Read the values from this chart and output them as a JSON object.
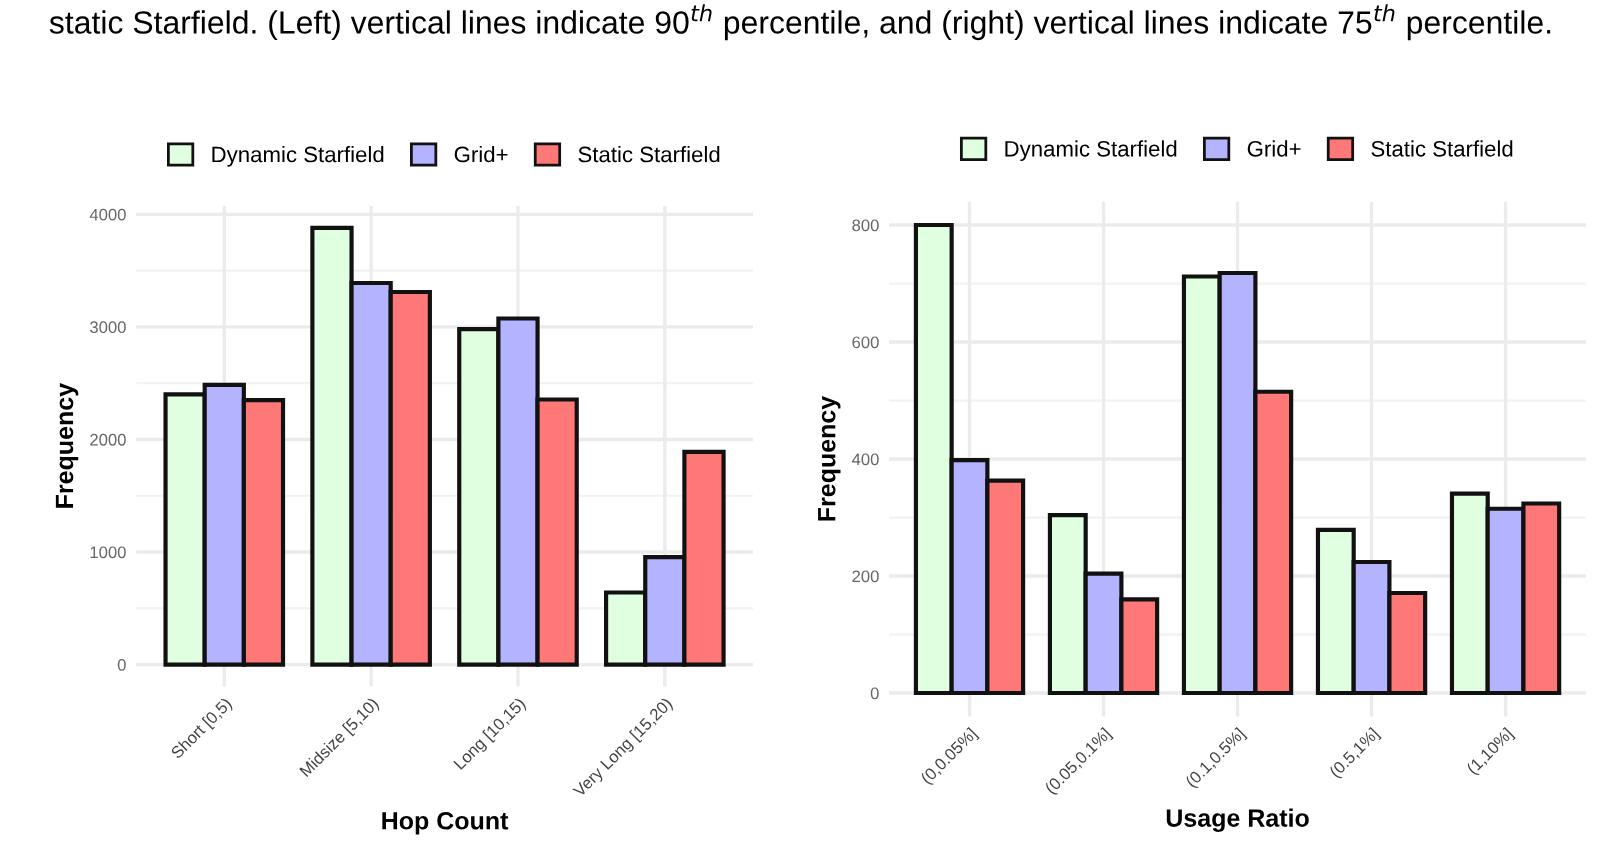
{
  "chart_data": [
    {
      "type": "bar",
      "xlabel": "Hop Count",
      "ylabel": "Frequency",
      "annotations": [
        "static Starfield. (Left) vertical lines indicate 90$^{th}$ percentile, and (right) vertical lines indicate 75$^{th}$ percentile."
      ],
      "categories": [
        "Short [0,5)",
        "Midsize [5,10)",
        "Long [10,15)",
        "Very Long [15,20)"
      ],
      "series": [
        {
          "name": "Dynamic Starfield",
          "color": "#e0ffe0",
          "values": [
            2400,
            3880,
            2980,
            640
          ]
        },
        {
          "name": "Grid+",
          "color": "#b3b3ff",
          "values": [
            2485,
            3390,
            3075,
            955
          ]
        },
        {
          "name": "Static Starfield",
          "color": "#ff7878",
          "values": [
            2350,
            3310,
            2355,
            1890
          ]
        }
      ],
      "ylim": [
        -194,
        4075
      ],
      "yticks": [
        0,
        1000,
        2000,
        3000,
        4000
      ],
      "grid": true,
      "legend": "top"
    },
    {
      "type": "bar",
      "xlabel": "Usage Ratio",
      "ylabel": "Frequency",
      "categories": [
        "(0,0.05%]",
        "(0.05,0.1%]",
        "(0.1,0.5%]",
        "(0.5,1%]",
        "(1,10%]"
      ],
      "series": [
        {
          "name": "Dynamic Starfield",
          "color": "#e0ffe0",
          "values": [
            800,
            304,
            712,
            279,
            341
          ]
        },
        {
          "name": "Grid+",
          "color": "#b3b3ff",
          "values": [
            398,
            204,
            718,
            224,
            315
          ]
        },
        {
          "name": "Static Starfield",
          "color": "#ff7878",
          "values": [
            363,
            160,
            515,
            171,
            324
          ]
        }
      ],
      "ylim": [
        -40,
        840
      ],
      "yticks": [
        0,
        200,
        400,
        600,
        800
      ],
      "grid": true,
      "legend": "top"
    }
  ]
}
